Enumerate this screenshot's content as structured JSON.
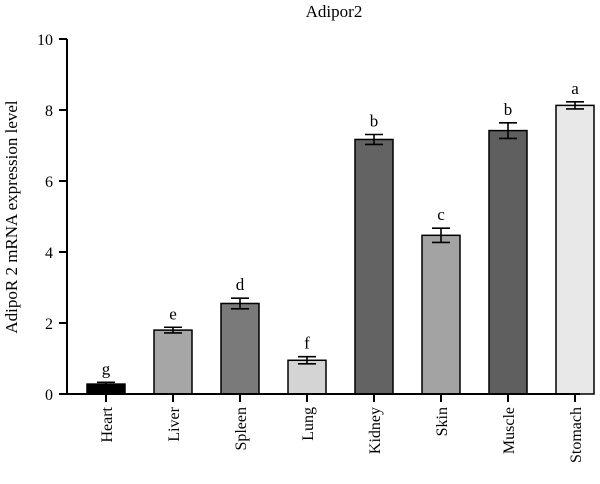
{
  "chart_data": {
    "type": "bar",
    "title": "Adipor2",
    "xlabel": "",
    "ylabel": "AdipoR 2 mRNA expression level",
    "ylim": [
      0,
      10
    ],
    "yticks": [
      0,
      2,
      4,
      6,
      8,
      10
    ],
    "categories": [
      "Heart",
      "Liver",
      "Spleen",
      "Lung",
      "Kidney",
      "Skin",
      "Muscle",
      "Stomach"
    ],
    "values": [
      0.28,
      1.8,
      2.55,
      0.95,
      7.17,
      4.47,
      7.42,
      8.13
    ],
    "errors": [
      0.05,
      0.08,
      0.15,
      0.1,
      0.14,
      0.2,
      0.22,
      0.1
    ],
    "significance_letters": [
      "g",
      "e",
      "d",
      "f",
      "b",
      "c",
      "b",
      "a"
    ],
    "bar_colors": [
      "#000000",
      "#a6a6a6",
      "#7a7a7a",
      "#d4d4d4",
      "#636363",
      "#a3a3a3",
      "#5f5f5f",
      "#e8e8e8"
    ],
    "grid": false,
    "legend": "none"
  }
}
